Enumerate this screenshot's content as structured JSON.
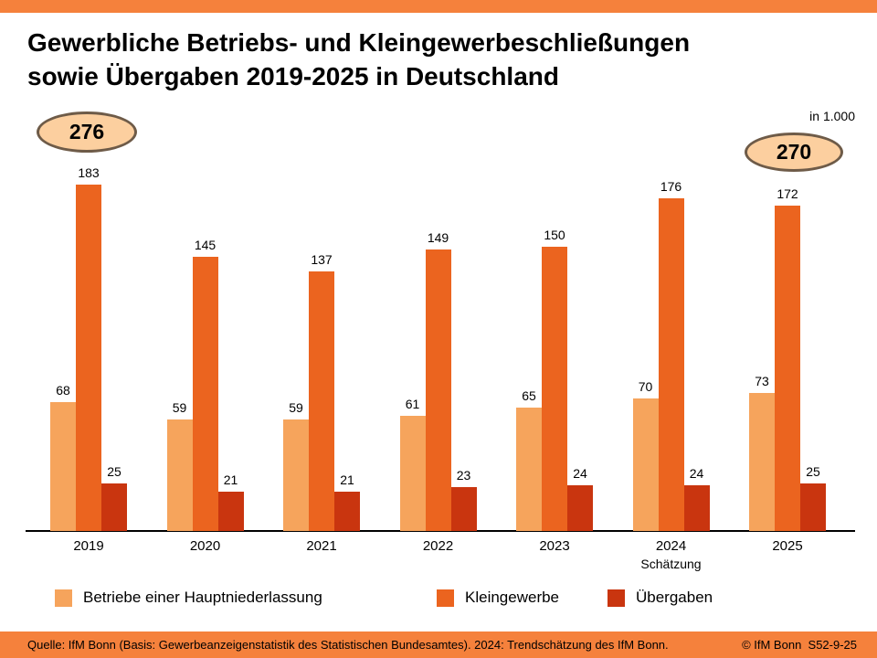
{
  "colors": {
    "stripe": "#F5813C",
    "bar_light": "#F6A45C",
    "bar_mid": "#EB641F",
    "bar_dark": "#C9350F",
    "badge_fill": "#FCCF9F",
    "badge_border": "#6E5B48"
  },
  "header": {
    "title_full": "Gewerbliche Betriebs- und Kleingewerbeschließungen sowie Übergaben 2019-2025 in Deutschland",
    "title_line1": "Gewerbliche Betriebs- und Kleingewerbeschließungen",
    "title_line2": "sowie Übergaben 2019-2025 in Deutschland",
    "unit_label": "in 1.000"
  },
  "badges": {
    "left": {
      "value": "276",
      "over_year": "2019"
    },
    "right": {
      "value": "270",
      "over_year": "2025"
    }
  },
  "chart_data": {
    "type": "bar",
    "title": "Gewerbliche Betriebs- und Kleingewerbeschließungen sowie Übergaben 2019-2025 in Deutschland",
    "unit": "in 1.000",
    "categories": [
      "2019",
      "2020",
      "2021",
      "2022",
      "2023",
      "2024",
      "2025"
    ],
    "category_sublabels": [
      "",
      "",
      "",
      "",
      "",
      "Schätzung",
      ""
    ],
    "series": [
      {
        "name": "Betriebe einer Hauptniederlassung",
        "color": "#F6A45C",
        "values": [
          68,
          59,
          59,
          61,
          65,
          70,
          73
        ]
      },
      {
        "name": "Kleingewerbe",
        "color": "#EB641F",
        "values": [
          183,
          145,
          137,
          149,
          150,
          176,
          172
        ]
      },
      {
        "name": "Übergaben",
        "color": "#C9350F",
        "values": [
          25,
          21,
          21,
          23,
          24,
          24,
          25
        ]
      }
    ],
    "value_labels": true,
    "grid": false,
    "legend_position": "bottom",
    "ylim": [
      0,
      190
    ],
    "annotations": [
      {
        "text": "276",
        "x": "2019",
        "note": "oval badge, sum of 2019 bars"
      },
      {
        "text": "270",
        "x": "2025",
        "note": "oval badge, sum of 2025 bars"
      }
    ]
  },
  "footer": {
    "source": "Quelle: IfM Bonn (Basis: Gewerbeanzeigenstatistik des Statistischen Bundesamtes). 2024: Trendschätzung des IfM Bonn.",
    "copyright": "© IfM Bonn  S52-9-25"
  }
}
